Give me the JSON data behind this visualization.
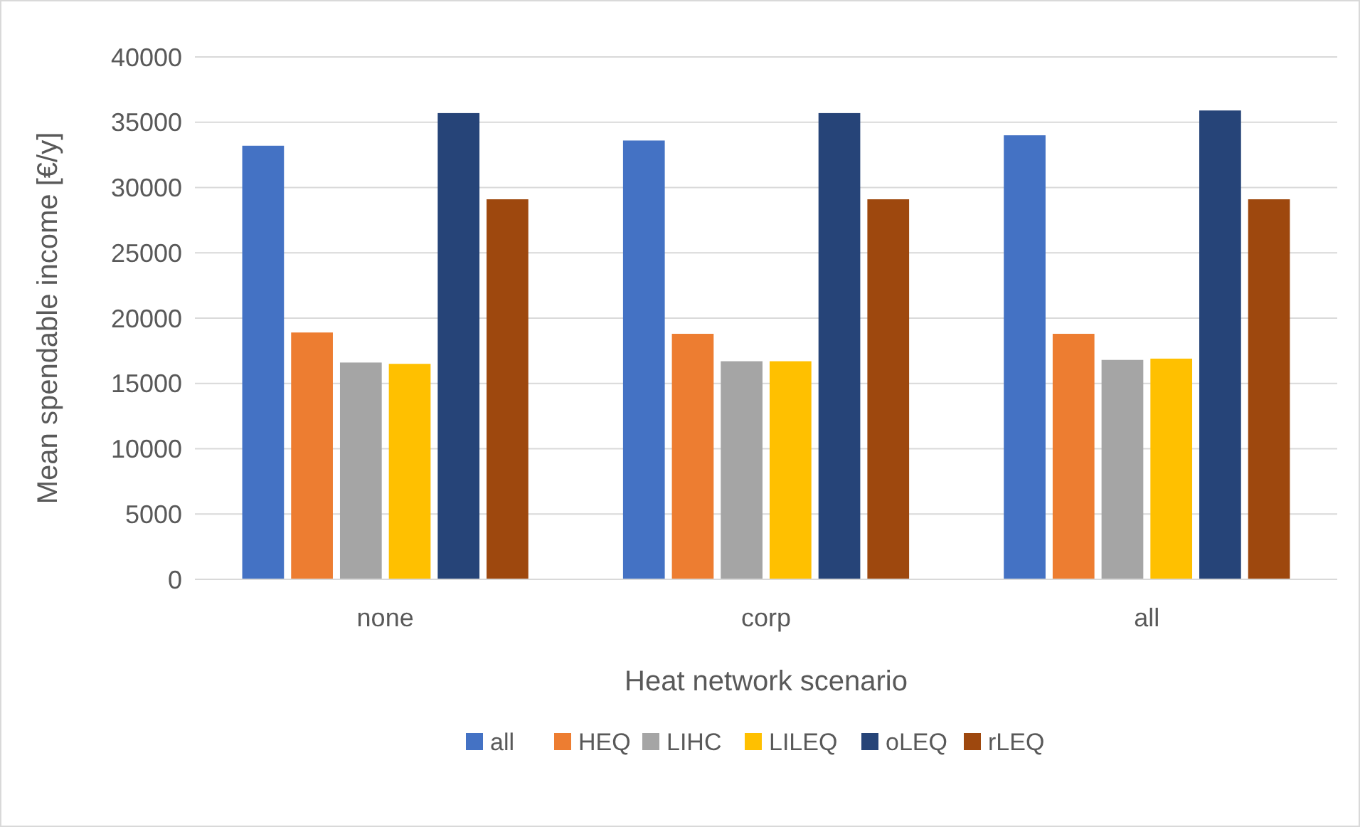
{
  "chart_data": {
    "type": "bar",
    "xlabel": "Heat network scenario",
    "ylabel": "Mean spendable income [€/y]",
    "categories": [
      "none",
      "corp",
      "all"
    ],
    "series": [
      {
        "name": "all",
        "color": "#4472c4",
        "values": [
          33200,
          33600,
          34000
        ]
      },
      {
        "name": "HEQ",
        "color": "#ed7d31",
        "values": [
          18900,
          18800,
          18800
        ]
      },
      {
        "name": "LIHC",
        "color": "#a5a5a5",
        "values": [
          16600,
          16700,
          16800
        ]
      },
      {
        "name": "LILEQ",
        "color": "#ffc000",
        "values": [
          16500,
          16700,
          16900
        ]
      },
      {
        "name": "oLEQ",
        "color": "#264478",
        "values": [
          35700,
          35700,
          35900
        ]
      },
      {
        "name": "rLEQ",
        "color": "#9e480e",
        "values": [
          29100,
          29100,
          29100
        ]
      }
    ],
    "ylim": [
      0,
      40000
    ],
    "yticks": [
      0,
      5000,
      10000,
      15000,
      20000,
      25000,
      30000,
      35000,
      40000
    ],
    "grid": "y",
    "legend": "bottom"
  }
}
